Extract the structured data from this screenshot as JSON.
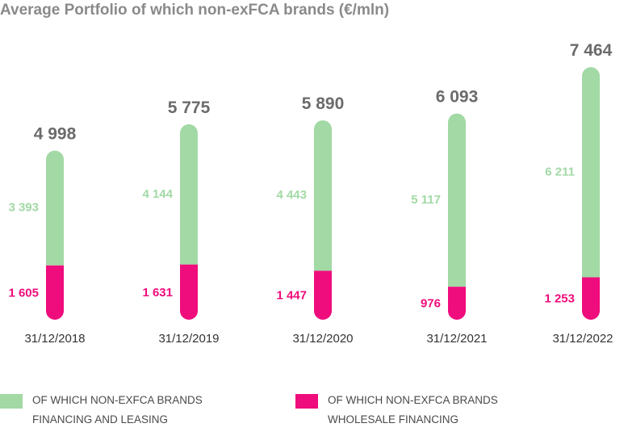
{
  "title": "Average Portfolio of which non-exFCA brands (€/mln)",
  "colors": {
    "financing": "#a2d9a5",
    "wholesale": "#ef0c7c",
    "total_text": "#6b6b6b",
    "date_text": "#333333"
  },
  "chart_data": {
    "type": "bar",
    "stacked": true,
    "categories": [
      "31/12/2018",
      "31/12/2019",
      "31/12/2020",
      "31/12/2021",
      "31/12/2022"
    ],
    "totals": [
      "4 998",
      "5 775",
      "5 890",
      "6 093",
      "7 464"
    ],
    "total_values": [
      4998,
      5775,
      5890,
      6093,
      7464
    ],
    "series": [
      {
        "key": "wholesale",
        "labels": [
          "1 605",
          "1 631",
          "1 447",
          "976",
          "1 253"
        ],
        "values": [
          1605,
          1631,
          1447,
          976,
          1253
        ]
      },
      {
        "key": "financing",
        "labels": [
          "3 393",
          "4 144",
          "4 443",
          "5 117",
          "6 211"
        ],
        "values": [
          3393,
          4144,
          4443,
          5117,
          6211
        ]
      }
    ],
    "title": "Average Portfolio of which non-exFCA brands (€/mln)",
    "legend_position": "bottom"
  },
  "legend": {
    "financing": [
      "OF WHICH NON-EXFCA BRANDS",
      "FINANCING AND LEASING"
    ],
    "wholesale": [
      "OF WHICH NON-EXFCA BRANDS",
      "WHOLESALE FINANCING"
    ]
  }
}
